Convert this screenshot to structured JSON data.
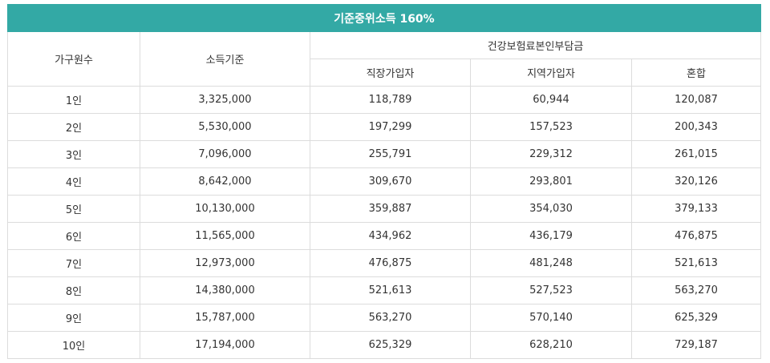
{
  "table": {
    "title": "기준중위소득 160%",
    "headers": {
      "household": "가구원수",
      "income": "소득기준",
      "premium_group": "건강보험료본인부담금",
      "employee": "직장가입자",
      "regional": "지역가입자",
      "mixed": "혼합"
    },
    "rows": [
      {
        "household": "1인",
        "income": "3,325,000",
        "employee": "118,789",
        "regional": "60,944",
        "mixed": "120,087"
      },
      {
        "household": "2인",
        "income": "5,530,000",
        "employee": "197,299",
        "regional": "157,523",
        "mixed": "200,343"
      },
      {
        "household": "3인",
        "income": "7,096,000",
        "employee": "255,791",
        "regional": "229,312",
        "mixed": "261,015"
      },
      {
        "household": "4인",
        "income": "8,642,000",
        "employee": "309,670",
        "regional": "293,801",
        "mixed": "320,126"
      },
      {
        "household": "5인",
        "income": "10,130,000",
        "employee": "359,887",
        "regional": "354,030",
        "mixed": "379,133"
      },
      {
        "household": "6인",
        "income": "11,565,000",
        "employee": "434,962",
        "regional": "436,179",
        "mixed": "476,875"
      },
      {
        "household": "7인",
        "income": "12,973,000",
        "employee": "476,875",
        "regional": "481,248",
        "mixed": "521,613"
      },
      {
        "household": "8인",
        "income": "14,380,000",
        "employee": "521,613",
        "regional": "527,523",
        "mixed": "563,270"
      },
      {
        "household": "9인",
        "income": "15,787,000",
        "employee": "563,270",
        "regional": "570,140",
        "mixed": "625,329"
      },
      {
        "household": "10인",
        "income": "17,194,000",
        "employee": "625,329",
        "regional": "628,210",
        "mixed": "729,187"
      }
    ]
  }
}
